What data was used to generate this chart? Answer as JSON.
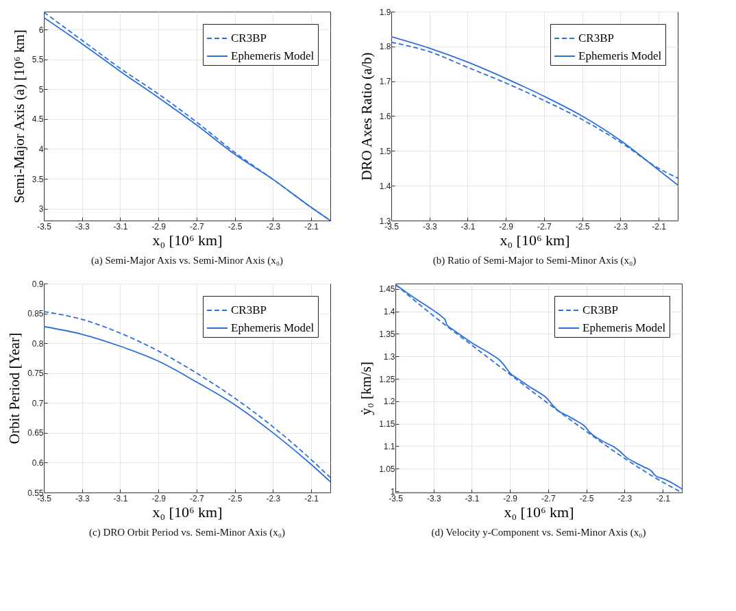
{
  "chart_data": [
    {
      "type": "line",
      "xlabel": "x₀ [10⁶ km]",
      "ylabel": "Semi-Major Axis (a) [10⁶ km]",
      "annotations": [
        "(a) Semi-Major Axis vs. Semi-Minor Axis (x₀)"
      ],
      "xlim": [
        -3.5,
        -2.0
      ],
      "xticks": [
        -3.5,
        -3.3,
        -3.1,
        -2.9,
        -2.7,
        -2.5,
        -2.3,
        -2.1
      ],
      "ylim": [
        2.8,
        6.3
      ],
      "yticks": [
        3,
        3.5,
        4,
        4.5,
        5,
        5.5,
        6
      ],
      "grid": true,
      "legend": "top right",
      "series": [
        {
          "name": "CR3BP",
          "color": "#2a6fdb",
          "line_style": "dashed",
          "x": [
            -3.5,
            -3.3,
            -3.1,
            -2.9,
            -2.7,
            -2.5,
            -2.3,
            -2.1,
            -2.0
          ],
          "values": [
            6.29,
            5.82,
            5.35,
            4.92,
            4.45,
            3.94,
            3.49,
            3.02,
            2.8
          ]
        },
        {
          "name": "Ephemeris Model",
          "color": "#2a6fdb",
          "line_style": "solid",
          "x": [
            -3.5,
            -3.3,
            -3.1,
            -2.9,
            -2.7,
            -2.5,
            -2.3,
            -2.1,
            -2.0
          ],
          "values": [
            6.2,
            5.76,
            5.3,
            4.86,
            4.4,
            3.91,
            3.49,
            3.02,
            2.8
          ]
        }
      ]
    },
    {
      "type": "line",
      "xlabel": "x₀ [10⁶ km]",
      "ylabel": "DRO Axes Ratio (a/b)",
      "annotations": [
        "(b) Ratio of Semi-Major to Semi-Minor Axis (x₀)"
      ],
      "xlim": [
        -3.5,
        -2.0
      ],
      "xticks": [
        -3.5,
        -3.3,
        -3.1,
        -2.9,
        -2.7,
        -2.5,
        -2.3,
        -2.1
      ],
      "ylim": [
        1.3,
        1.9
      ],
      "yticks": [
        1.3,
        1.4,
        1.5,
        1.6,
        1.7,
        1.8,
        1.9
      ],
      "grid": true,
      "legend": "top right",
      "series": [
        {
          "name": "CR3BP",
          "color": "#2a6fdb",
          "line_style": "dashed",
          "x": [
            -3.5,
            -3.3,
            -3.1,
            -2.9,
            -2.7,
            -2.5,
            -2.3,
            -2.1,
            -2.0
          ],
          "values": [
            1.812,
            1.785,
            1.74,
            1.695,
            1.645,
            1.59,
            1.525,
            1.45,
            1.422
          ]
        },
        {
          "name": "Ephemeris Model",
          "color": "#2a6fdb",
          "line_style": "solid",
          "x": [
            -3.5,
            -3.3,
            -3.1,
            -2.9,
            -2.7,
            -2.5,
            -2.3,
            -2.1,
            -2.0
          ],
          "values": [
            1.828,
            1.795,
            1.755,
            1.708,
            1.657,
            1.6,
            1.53,
            1.445,
            1.402
          ]
        }
      ]
    },
    {
      "type": "line",
      "xlabel": "x₀ [10⁶ km]",
      "ylabel": "Orbit Period [Year]",
      "annotations": [
        "(c) DRO Orbit Period vs. Semi-Minor Axis (x₀)"
      ],
      "xlim": [
        -3.5,
        -2.0
      ],
      "xticks": [
        -3.5,
        -3.3,
        -3.1,
        -2.9,
        -2.7,
        -2.5,
        -2.3,
        -2.1
      ],
      "ylim": [
        0.55,
        0.9
      ],
      "yticks": [
        0.55,
        0.6,
        0.65,
        0.7,
        0.75,
        0.8,
        0.85,
        0.9
      ],
      "grid": true,
      "legend": "top right",
      "series": [
        {
          "name": "CR3BP",
          "color": "#2a6fdb",
          "line_style": "dashed",
          "x": [
            -3.5,
            -3.3,
            -3.1,
            -2.9,
            -2.7,
            -2.5,
            -2.3,
            -2.1,
            -2.0
          ],
          "values": [
            0.853,
            0.84,
            0.817,
            0.787,
            0.75,
            0.708,
            0.66,
            0.605,
            0.575
          ]
        },
        {
          "name": "Ephemeris Model",
          "color": "#2a6fdb",
          "line_style": "solid",
          "x": [
            -3.5,
            -3.3,
            -3.1,
            -2.9,
            -2.7,
            -2.5,
            -2.3,
            -2.1,
            -2.0
          ],
          "values": [
            0.828,
            0.815,
            0.795,
            0.77,
            0.735,
            0.697,
            0.65,
            0.597,
            0.568
          ]
        }
      ]
    },
    {
      "type": "line",
      "xlabel": "x₀ [10⁶ km]",
      "ylabel": "ẏ₀ [km/s]",
      "annotations": [
        "(d) Velocity y-Component vs. Semi-Minor Axis (x₀)"
      ],
      "xlim": [
        -3.5,
        -2.0
      ],
      "xticks": [
        -3.5,
        -3.3,
        -3.1,
        -2.9,
        -2.7,
        -2.5,
        -2.3,
        -2.1
      ],
      "ylim": [
        0.997,
        1.462
      ],
      "yticks": [
        1,
        1.05,
        1.1,
        1.15,
        1.2,
        1.25,
        1.3,
        1.35,
        1.4,
        1.45
      ],
      "grid": true,
      "legend": "top right",
      "series": [
        {
          "name": "CR3BP",
          "color": "#2a6fdb",
          "line_style": "dashed",
          "x": [
            -3.5,
            -3.3,
            -3.1,
            -2.9,
            -2.7,
            -2.5,
            -2.3,
            -2.1,
            -2.0
          ],
          "values": [
            1.46,
            1.39,
            1.325,
            1.26,
            1.195,
            1.133,
            1.073,
            1.02,
            0.997
          ]
        },
        {
          "name": "Ephemeris Model",
          "color": "#2a6fdb",
          "line_style": "solid",
          "x": [
            -3.5,
            -3.4,
            -3.3,
            -3.25,
            -3.24,
            -3.23,
            -3.2,
            -3.15,
            -3.1,
            -3.0,
            -2.95,
            -2.93,
            -2.9,
            -2.85,
            -2.8,
            -2.75,
            -2.71,
            -2.68,
            -2.65,
            -2.6,
            -2.55,
            -2.51,
            -2.48,
            -2.45,
            -2.4,
            -2.35,
            -2.32,
            -2.29,
            -2.25,
            -2.2,
            -2.16,
            -2.14,
            -2.1,
            -2.05,
            -2.0
          ],
          "values": [
            1.46,
            1.43,
            1.402,
            1.386,
            1.382,
            1.37,
            1.36,
            1.345,
            1.33,
            1.305,
            1.29,
            1.28,
            1.263,
            1.248,
            1.233,
            1.22,
            1.208,
            1.193,
            1.18,
            1.168,
            1.156,
            1.145,
            1.13,
            1.12,
            1.108,
            1.097,
            1.087,
            1.075,
            1.065,
            1.054,
            1.045,
            1.035,
            1.028,
            1.018,
            1.005
          ]
        }
      ]
    }
  ]
}
